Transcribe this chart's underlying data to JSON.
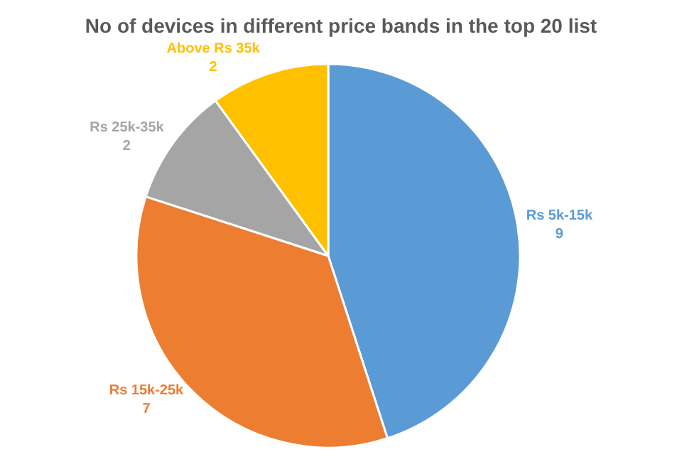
{
  "chart_data": {
    "type": "pie",
    "title": "No of devices in different price bands in the top 20 list",
    "categories": [
      "Rs 5k-15k",
      "Rs 15k-25k",
      "Rs 25k-35k",
      "Above Rs 35k"
    ],
    "values": [
      9,
      7,
      2,
      2
    ],
    "colors": [
      "#5b9bd5",
      "#ed7d31",
      "#a5a5a5",
      "#ffc000"
    ],
    "data_labels": true,
    "legend": false
  }
}
